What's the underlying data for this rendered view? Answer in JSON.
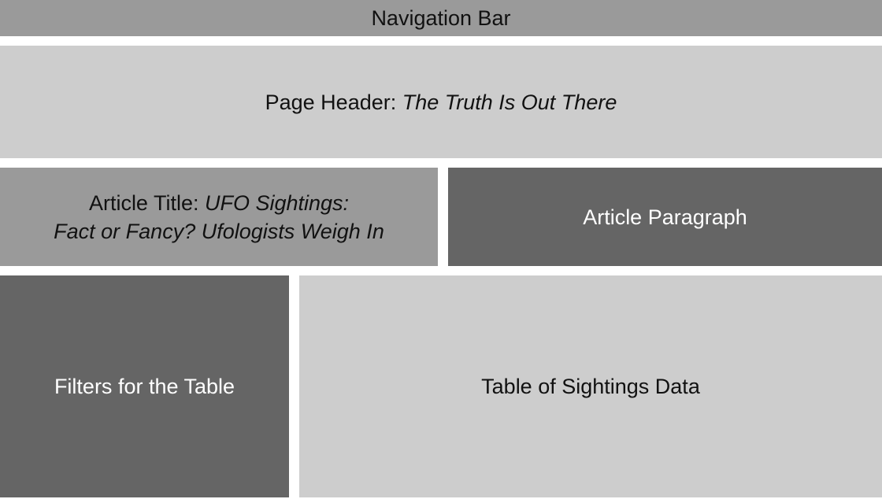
{
  "wireframe": {
    "nav": {
      "label": "Navigation Bar"
    },
    "header": {
      "prefix": "Page Header: ",
      "title": "The Truth Is Out There"
    },
    "article_title": {
      "prefix": "Article Title: ",
      "title_line1": "UFO Sightings:",
      "title_line2": "Fact or Fancy? Ufologists Weigh In"
    },
    "article_paragraph": {
      "label": "Article Paragraph"
    },
    "filters": {
      "label": "Filters for the Table"
    },
    "table": {
      "label": "Table of Sightings Data"
    }
  },
  "colors": {
    "mid_gray": "#9a9a9a",
    "light_gray": "#cdcdcd",
    "dark_gray": "#656565"
  }
}
